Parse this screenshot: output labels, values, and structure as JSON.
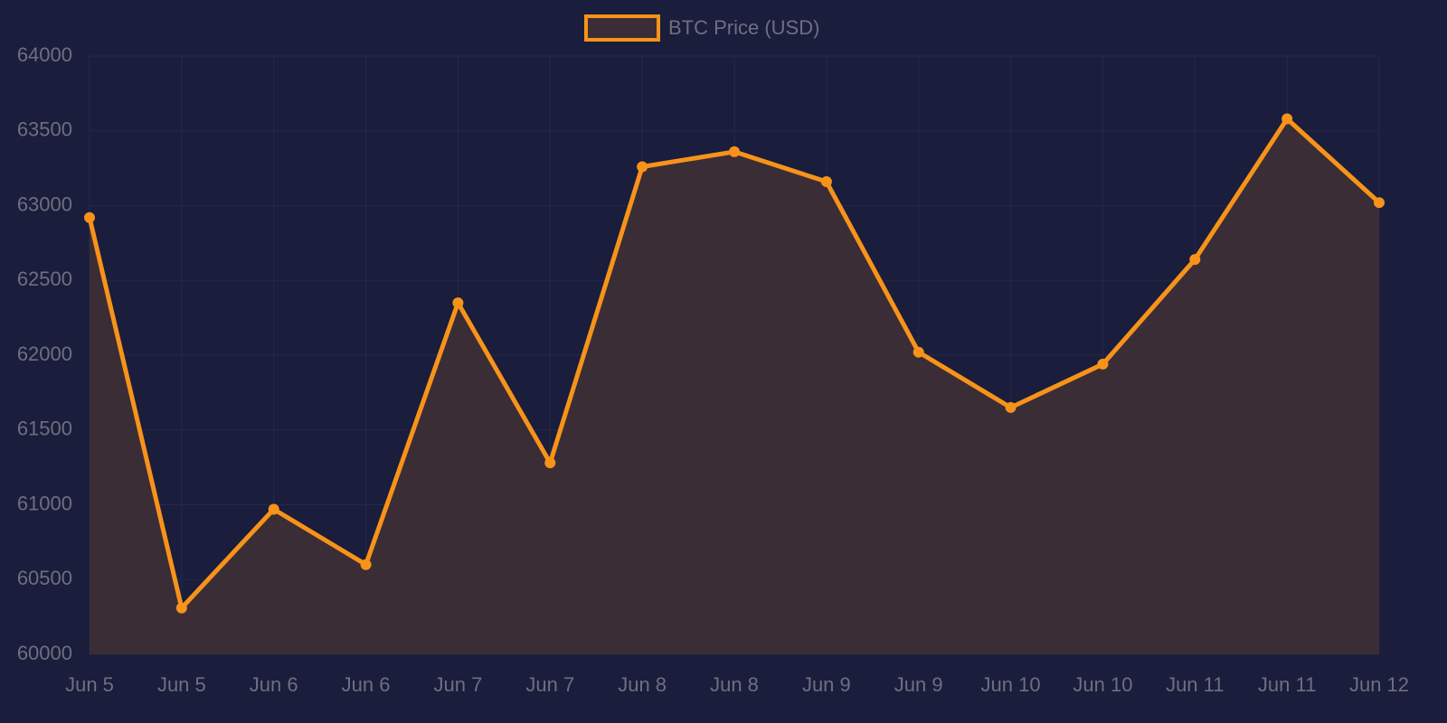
{
  "chart_data": {
    "type": "line",
    "categories": [
      "Jun 5",
      "Jun 5",
      "Jun 6",
      "Jun 6",
      "Jun 7",
      "Jun 7",
      "Jun 8",
      "Jun 8",
      "Jun 9",
      "Jun 9",
      "Jun 10",
      "Jun 10",
      "Jun 11",
      "Jun 11",
      "Jun 12"
    ],
    "series": [
      {
        "name": "BTC Price (USD)",
        "color": "#f7931a",
        "fill": "#3b2d36",
        "values": [
          62920,
          60310,
          60970,
          60600,
          62350,
          61280,
          63260,
          63360,
          63160,
          62020,
          61650,
          61940,
          62640,
          63580,
          63020
        ]
      }
    ],
    "ylim": [
      60000,
      64000
    ],
    "yticks": [
      60000,
      60500,
      61000,
      61500,
      62000,
      62500,
      63000,
      63500,
      64000
    ],
    "grid": true,
    "legend": "top"
  }
}
